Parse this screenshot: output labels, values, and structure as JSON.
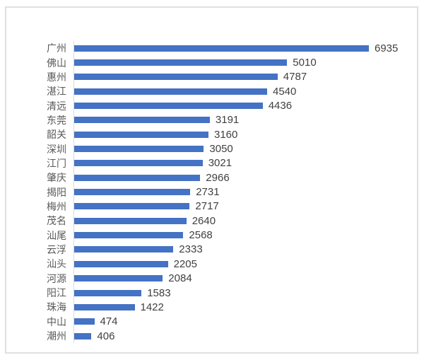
{
  "chart_data": {
    "type": "bar",
    "orientation": "horizontal",
    "title": "",
    "xlabel": "",
    "ylabel": "",
    "grid": false,
    "legend": false,
    "data_labels": true,
    "categories": [
      "广州",
      "佛山",
      "惠州",
      "湛江",
      "清远",
      "东莞",
      "韶关",
      "深圳",
      "江门",
      "肇庆",
      "揭阳",
      "梅州",
      "茂名",
      "汕尾",
      "云浮",
      "汕头",
      "河源",
      "阳江",
      "珠海",
      "中山",
      "潮州"
    ],
    "values": [
      6935,
      5010,
      4787,
      4540,
      4436,
      3191,
      3160,
      3050,
      3021,
      2966,
      2731,
      2717,
      2640,
      2568,
      2333,
      2205,
      2084,
      1583,
      1422,
      474,
      406
    ],
    "colors": {
      "bar": "#4472C4",
      "category_label": "#595959",
      "value_label": "#404040",
      "axis_line": "#D9D9D9",
      "frame_border": "#E0E0E0",
      "background": "#FFFFFF"
    }
  }
}
